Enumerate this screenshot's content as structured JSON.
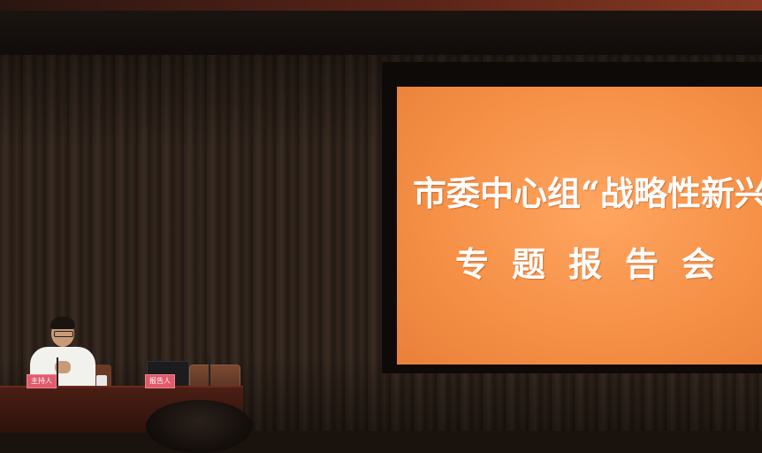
{
  "screen": {
    "title": "市委中心组“战略性新兴产业”",
    "subtitle": "专题报告会"
  },
  "nameplates": {
    "host": "主持人",
    "speaker": "报告人"
  },
  "colors": {
    "screen_orange": "#f58f45",
    "curtain_brown": "#2b2019",
    "podium_red": "#4a1e14",
    "nameplate_pink": "#e05c6a"
  }
}
